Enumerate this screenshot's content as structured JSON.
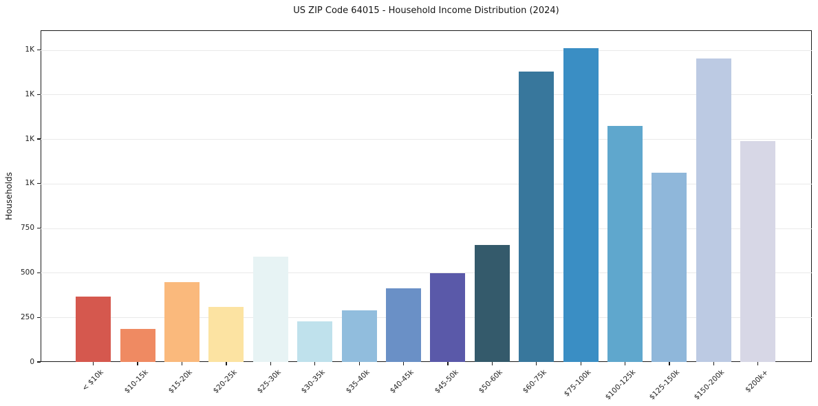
{
  "chart_data": {
    "type": "bar",
    "title": "US ZIP Code 64015 - Household Income Distribution (2024)",
    "xlabel": "",
    "ylabel": "Households",
    "categories": [
      "< $10k",
      "$10-15k",
      "$15-20k",
      "$20-25k",
      "$25-30k",
      "$30-35k",
      "$35-40k",
      "$40-45k",
      "$45-50k",
      "$50-60k",
      "$60-75k",
      "$75-100k",
      "$100-125k",
      "$125-150k",
      "$150-200k",
      "$200k+"
    ],
    "values": [
      368,
      185,
      447,
      310,
      592,
      228,
      291,
      412,
      497,
      658,
      1628,
      1760,
      1325,
      1062,
      1703,
      1240
    ],
    "bar_colors": [
      "#d5584e",
      "#ef8a62",
      "#fab97c",
      "#fce3a2",
      "#e7f3f4",
      "#bfe1ec",
      "#91bddd",
      "#6a90c6",
      "#5a59a9",
      "#345a6b",
      "#38779c",
      "#3a8ec4",
      "#5fa7cd",
      "#8fb7da",
      "#bccae3",
      "#d7d7e6"
    ],
    "ylim": [
      0,
      1860
    ],
    "yticks": [
      {
        "value": 0,
        "label": "0"
      },
      {
        "value": 250,
        "label": "250"
      },
      {
        "value": 500,
        "label": "500"
      },
      {
        "value": 750,
        "label": "750"
      },
      {
        "value": 1000,
        "label": "1K"
      },
      {
        "value": 1250,
        "label": "1K"
      },
      {
        "value": 1500,
        "label": "1K"
      },
      {
        "value": 1750,
        "label": "1K"
      }
    ],
    "grid": "horizontal-only",
    "legend": "none"
  },
  "colors": {
    "background": "#ffffff",
    "grid": "#e9e9e9",
    "spine": "#1a1a1a",
    "text": "#202020"
  }
}
